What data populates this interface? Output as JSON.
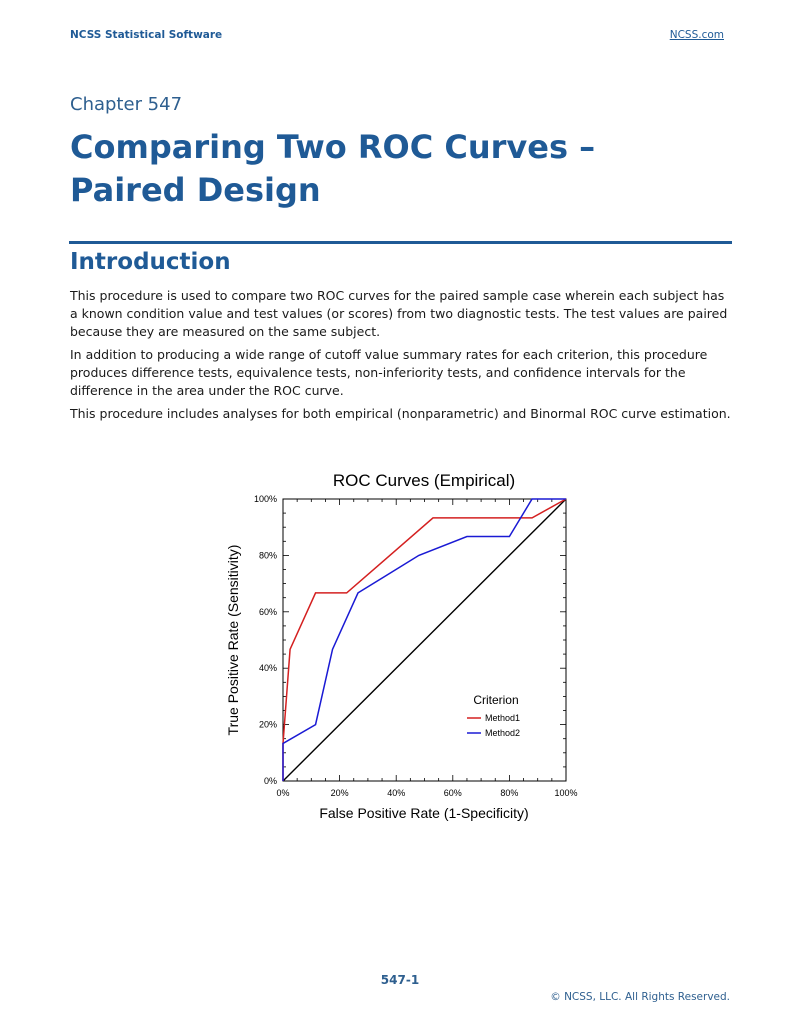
{
  "header": {
    "left": "NCSS Statistical Software",
    "right": "NCSS.com"
  },
  "chapter": "Chapter 547",
  "title": "Comparing Two ROC Curves – Paired Design",
  "section": "Introduction",
  "paragraphs": [
    "This procedure is used to compare two ROC curves for the paired sample case wherein each subject has a known condition value and test values (or scores) from two diagnostic tests. The test values are paired because they are measured on the same subject.",
    "In addition to producing a wide range of cutoff value summary rates for each criterion, this procedure produces difference tests, equivalence tests, non-inferiority tests, and confidence intervals for the difference in the area under the ROC curve.",
    "This procedure includes analyses for both empirical (nonparametric) and Binormal ROC curve estimation."
  ],
  "chart_data": {
    "type": "line",
    "title": "ROC Curves (Empirical)",
    "xlabel": "False Positive Rate (1-Specificity)",
    "ylabel": "True Positive Rate (Sensitivity)",
    "xlim": [
      0,
      100
    ],
    "ylim": [
      0,
      100
    ],
    "x_ticks": [
      "0%",
      "20%",
      "40%",
      "60%",
      "80%",
      "100%"
    ],
    "y_ticks": [
      "0%",
      "20%",
      "40%",
      "60%",
      "80%",
      "100%"
    ],
    "legend_title": "Criterion",
    "legend_position": "bottom-right",
    "series": [
      {
        "name": "Method1",
        "color": "#d42020",
        "points": [
          [
            0,
            0
          ],
          [
            0,
            13.3
          ],
          [
            2.5,
            46.7
          ],
          [
            11.5,
            66.7
          ],
          [
            22.5,
            66.7
          ],
          [
            53,
            93.3
          ],
          [
            88,
            93.3
          ],
          [
            100,
            100
          ]
        ]
      },
      {
        "name": "Method2",
        "color": "#1a1ad4",
        "points": [
          [
            0,
            0
          ],
          [
            0,
            13.3
          ],
          [
            11.5,
            20
          ],
          [
            17.5,
            46.7
          ],
          [
            26.5,
            66.7
          ],
          [
            48,
            80
          ],
          [
            65,
            86.7
          ],
          [
            80,
            86.7
          ],
          [
            88,
            100
          ],
          [
            97.5,
            100
          ],
          [
            100,
            100
          ]
        ]
      }
    ],
    "reference_line": {
      "color": "#000000",
      "points": [
        [
          0,
          0
        ],
        [
          100,
          100
        ]
      ]
    }
  },
  "footer": {
    "page": "547-1",
    "copyright": "© NCSS, LLC. All Rights Reserved."
  }
}
